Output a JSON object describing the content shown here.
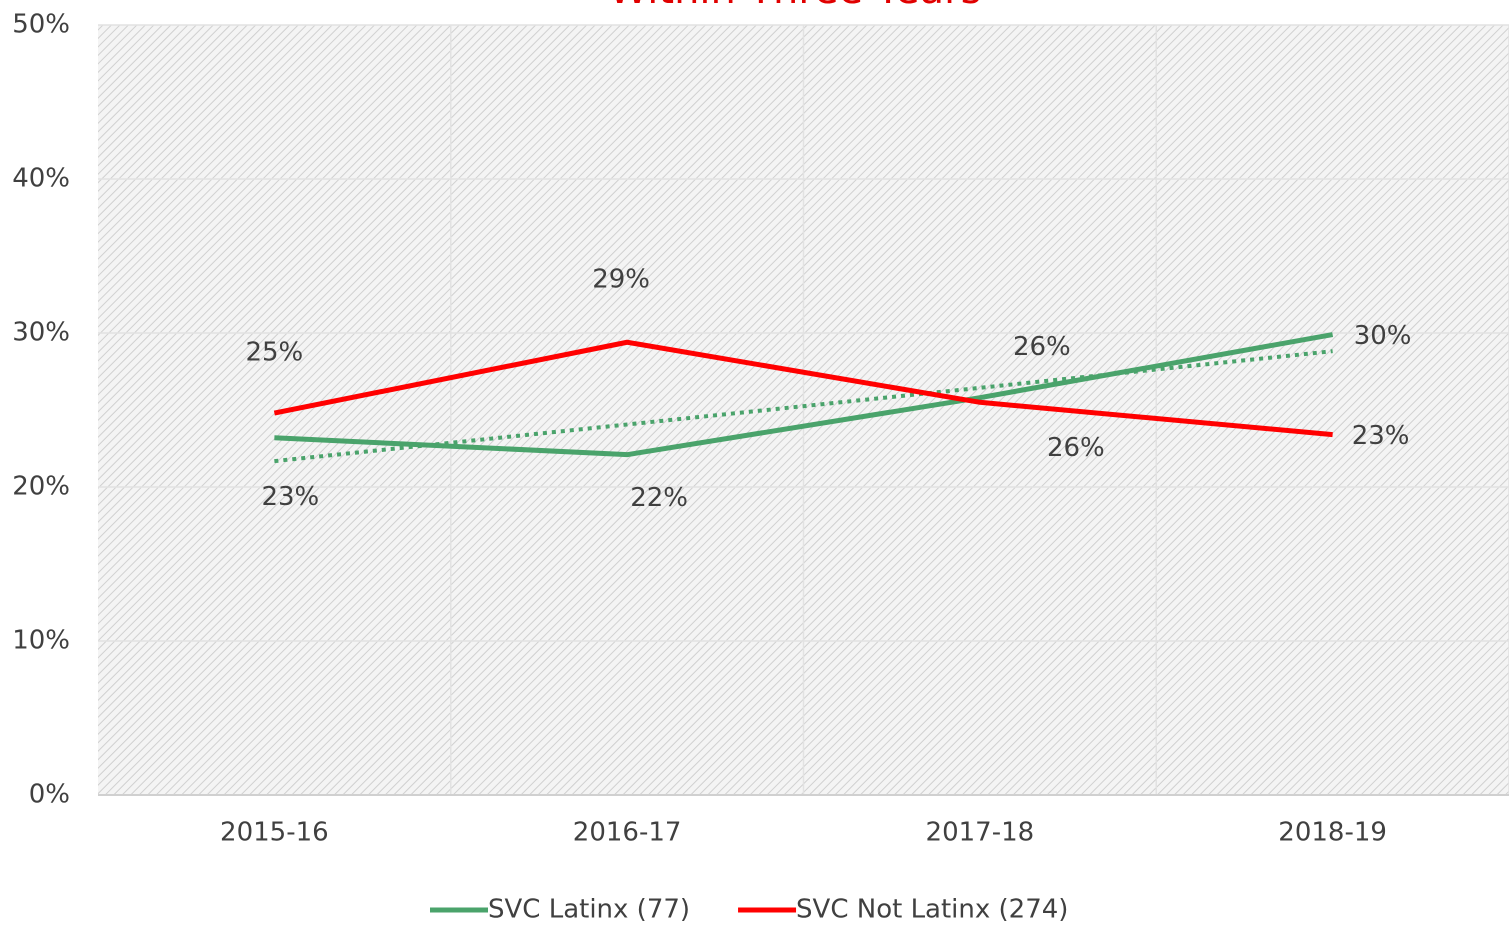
{
  "chart_data": {
    "type": "line",
    "title": "Within Three Years",
    "categories": [
      "2015-16",
      "2016-17",
      "2017-18",
      "2018-19"
    ],
    "series": [
      {
        "name": "SVC Latinx (77)",
        "color": "#4aa36b",
        "values": [
          23.2,
          22.1,
          25.8,
          29.9
        ],
        "value_labels": [
          "23%",
          "22%",
          "26%",
          "30%"
        ],
        "trendline": true
      },
      {
        "name": "SVC Not Latinx (274)",
        "color": "#ff0000",
        "values": [
          24.8,
          29.4,
          25.5,
          23.4
        ],
        "value_labels": [
          "25%",
          "29%",
          "26%",
          "23%"
        ]
      }
    ],
    "ylim": [
      0,
      50
    ],
    "yticks": [
      {
        "value": 0,
        "label": "0%"
      },
      {
        "value": 10,
        "label": "10%"
      },
      {
        "value": 20,
        "label": "20%"
      },
      {
        "value": 30,
        "label": "30%"
      },
      {
        "value": 40,
        "label": "40%"
      },
      {
        "value": 50,
        "label": "50%"
      }
    ],
    "grid": true,
    "legend": "bottom"
  }
}
